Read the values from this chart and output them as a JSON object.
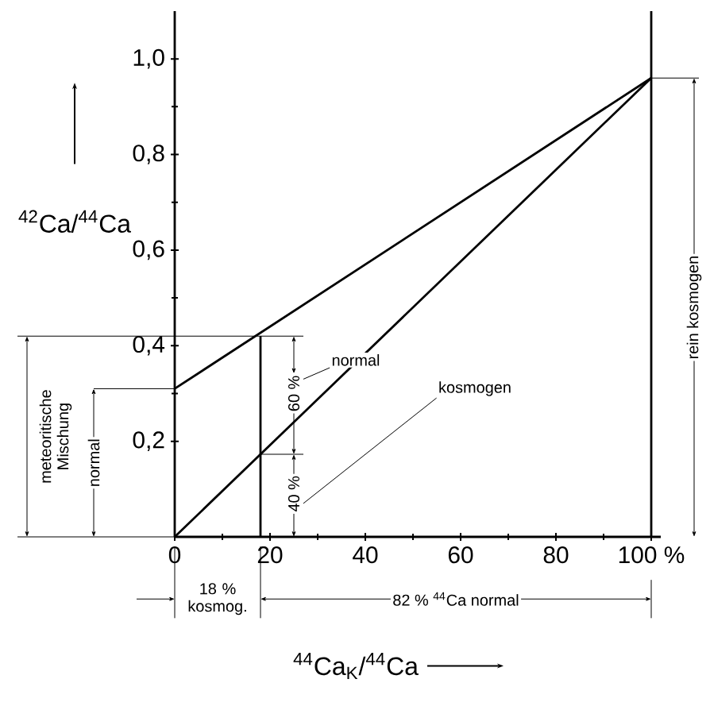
{
  "chart_data": {
    "type": "line",
    "xlabel": "$^{44}$Ca$_{K}$/$^{44}$Ca",
    "ylabel": "$^{42}$Ca/$^{44}$Ca",
    "series": [
      {
        "x": [
          0,
          100
        ],
        "values": [
          0.31,
          0.96
        ],
        "color": "#000000"
      },
      {
        "x": [
          0,
          100
        ],
        "values": [
          0,
          0.96
        ],
        "color": "#000000"
      },
      {
        "x": [
          18,
          18
        ],
        "values": [
          0,
          0.42
        ],
        "color": "#000000"
      },
      {
        "x": [
          0,
          18
        ],
        "values": [
          0.42,
          0.42
        ],
        "color": "#000000"
      }
    ],
    "xlim": [
      0,
      102
    ],
    "ylim": [
      0,
      1.1
    ],
    "xticks": [
      0,
      20,
      40,
      60,
      80,
      {
        "value": 100,
        "label": "100 %"
      }
    ],
    "yticks": [
      {
        "value": 0.2,
        "label": "0,2"
      },
      {
        "value": 0.4,
        "label": "0,4"
      },
      {
        "value": 0.6,
        "label": "0,6"
      },
      {
        "value": 0.8,
        "label": "0,8"
      },
      {
        "value": 1.0,
        "label": "1,0"
      }
    ],
    "ref_lines": [
      {
        "axis": "x",
        "value": 100,
        "color": "#000000"
      }
    ],
    "grid": false,
    "marker": "none",
    "line_style": "solid",
    "annotations": [
      "normal",
      "kosmogen",
      "60 %",
      "40 %",
      "meteoritische Mischung",
      "normal",
      "18 % kosmog.",
      "82 % $^{44}$Ca normal",
      "rein kosmogen"
    ]
  }
}
